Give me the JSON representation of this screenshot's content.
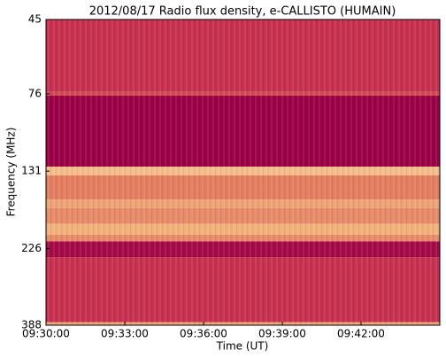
{
  "chart_data": {
    "type": "spectrogram",
    "title": "2012/08/17  Radio flux density, e-CALLISTO (HUMAIN)",
    "xlabel": "Time (UT)",
    "ylabel": "Frequency (MHz)",
    "xlim": [
      570,
      585
    ],
    "xticks": [
      {
        "value": 570,
        "label": "09:30:00"
      },
      {
        "value": 573,
        "label": "09:33:00"
      },
      {
        "value": 576,
        "label": "09:36:00"
      },
      {
        "value": 579,
        "label": "09:39:00"
      },
      {
        "value": 582,
        "label": "09:42:00"
      }
    ],
    "ylim": [
      45,
      388
    ],
    "yscale": "log",
    "yinverted": true,
    "yticks": [
      45,
      76,
      131,
      226,
      388
    ],
    "colormap": [
      "#9b0046",
      "#c8304f",
      "#e0705a",
      "#f2b07a",
      "#fff2c0"
    ],
    "bands": [
      {
        "from": 45,
        "to": 75,
        "level": 0.25
      },
      {
        "from": 75,
        "to": 77,
        "level": 0.35
      },
      {
        "from": 77,
        "to": 127,
        "level": 0.0
      },
      {
        "from": 127,
        "to": 135,
        "level": 0.8
      },
      {
        "from": 135,
        "to": 160,
        "level": 0.55
      },
      {
        "from": 160,
        "to": 170,
        "level": 0.7
      },
      {
        "from": 170,
        "to": 190,
        "level": 0.6
      },
      {
        "from": 190,
        "to": 205,
        "level": 0.75
      },
      {
        "from": 205,
        "to": 215,
        "level": 0.6
      },
      {
        "from": 215,
        "to": 240,
        "level": 0.05
      },
      {
        "from": 240,
        "to": 380,
        "level": 0.25
      },
      {
        "from": 380,
        "to": 388,
        "level": 0.7
      }
    ]
  }
}
